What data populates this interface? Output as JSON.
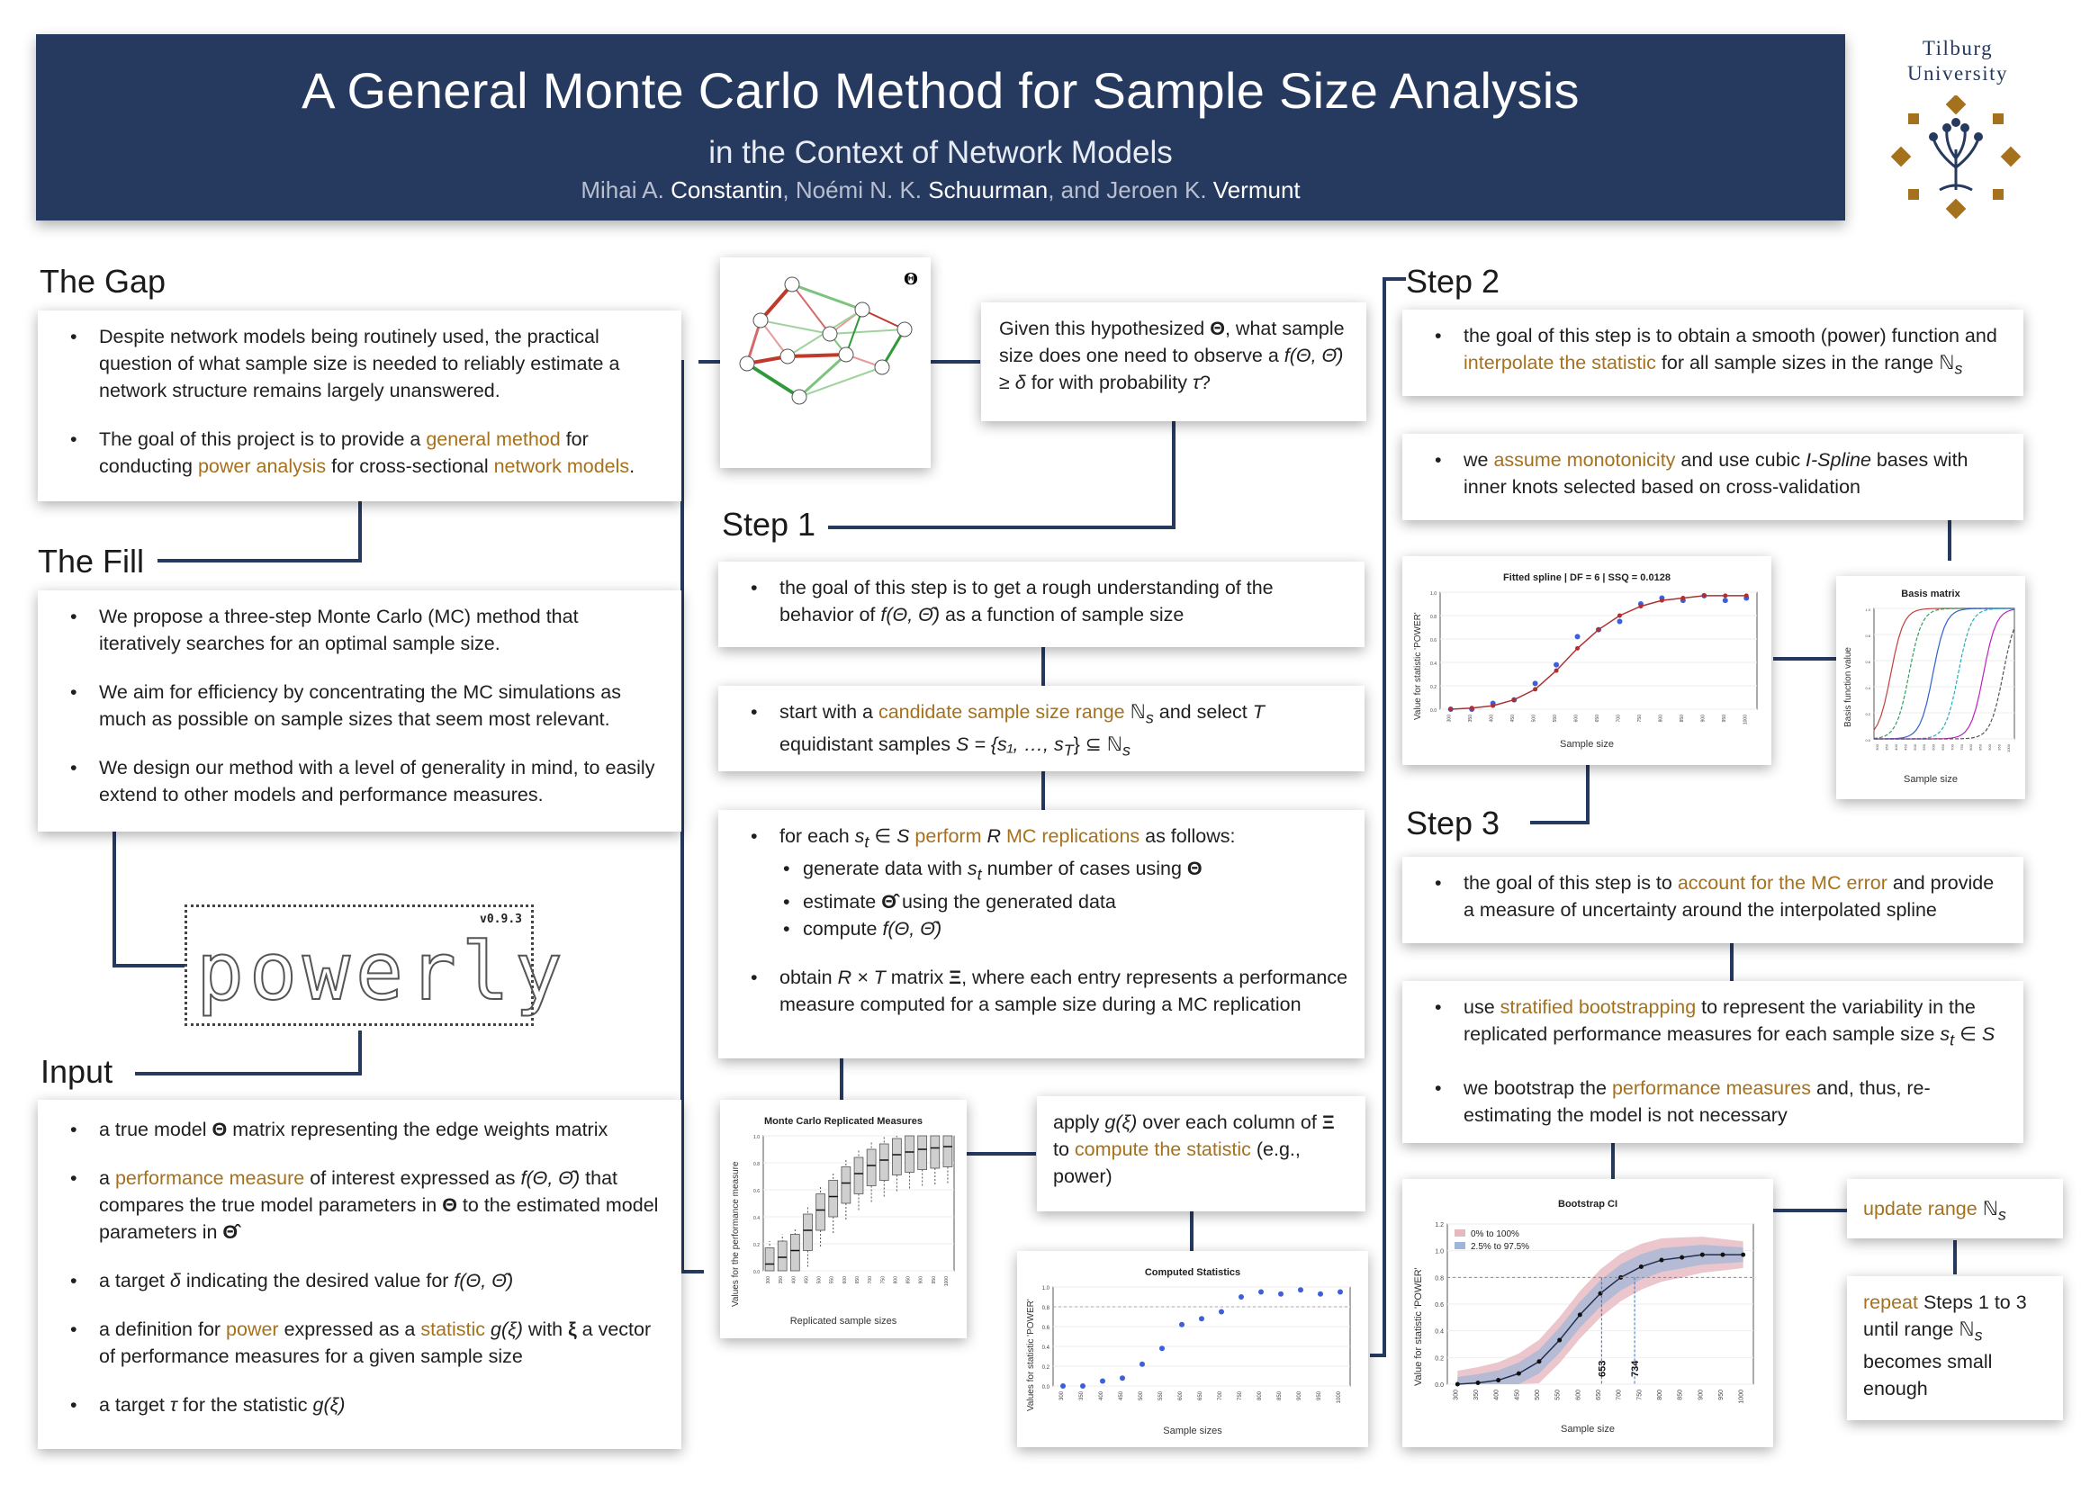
{
  "header": {
    "title": "A General Monte Carlo Method for Sample Size Analysis",
    "subtitle": "in the Context of Network Models",
    "authors": [
      {
        "first": "Mihai A.",
        "last": "Constantin"
      },
      {
        "first": "Noémi N. K.",
        "last": "Schuurman"
      },
      {
        "first": "and Jeroen K.",
        "last": "Vermunt"
      }
    ]
  },
  "logo": {
    "line1": "Tilburg",
    "line2": "University",
    "color": "#a6711c"
  },
  "colors": {
    "navy": "#26395f",
    "highlight": "#a6711c"
  },
  "gap": {
    "heading": "The Gap",
    "items": [
      "Despite network models being routinely used, the practical question of what sample size is needed to reliably estimate a network structure remains largely unanswered.",
      [
        "The goal of this project is to provide a ",
        "general method",
        " for conducting ",
        "power analysis",
        " for cross-sectional ",
        "network models",
        "."
      ]
    ]
  },
  "fill": {
    "heading": "The Fill",
    "items": [
      "We propose a three-step Monte Carlo (MC) method that iteratively searches for an optimal sample size.",
      "We aim for efficiency by concentrating the MC simulations as much as possible on sample sizes that seem most relevant.",
      "We design our method with a level of generality in mind, to easily extend to other models and performance measures."
    ]
  },
  "powerly": {
    "word": "powerly",
    "version": "v0.9.3"
  },
  "input": {
    "heading": "Input",
    "items": [
      [
        "a true model ",
        "Θ",
        " matrix representing the edge weights matrix"
      ],
      [
        "a ",
        "performance measure",
        " of interest expressed as ",
        "f(Θ, Θ̂)",
        " that compares the true model parameters in ",
        "Θ",
        " to the estimated model parameters in ",
        "Θ̂"
      ],
      [
        "a target ",
        "δ",
        " indicating the desired value for ",
        "f(Θ, Θ̂)"
      ],
      [
        "a definition for ",
        "power",
        " expressed as a ",
        "statistic",
        " ",
        "g(ξ)",
        " with ",
        "ξ",
        " a vector of performance measures for a given sample size"
      ],
      [
        "a target ",
        "τ",
        " for the statistic ",
        "g(ξ)"
      ]
    ]
  },
  "network": {
    "label": "Θ",
    "nodes": [
      "1",
      "2",
      "3",
      "4",
      "5",
      "6",
      "7",
      "8",
      "9",
      "10"
    ]
  },
  "question": {
    "text": [
      "Given this hypothesized ",
      "Θ",
      ", what sample size does one need to observe a ",
      "f(Θ, Θ̂) ≥ δ",
      " for with probability ",
      "τ",
      "?"
    ]
  },
  "step1": {
    "heading": "Step 1",
    "c1": [
      "the goal of this step is to get a rough understanding of the behavior of ",
      "f(Θ, Θ̂)",
      " as a function of sample size"
    ],
    "c2": [
      "start with a ",
      "candidate sample size range",
      " ",
      "ℕ",
      "s",
      " and select ",
      "T",
      " equidistant samples ",
      "S = {s₁, …, s",
      "T",
      "} ⊆ ℕ",
      "s"
    ],
    "c3_lead": [
      "for each ",
      "s",
      "t",
      " ∈ ",
      "S",
      " ",
      "perform ",
      "R",
      " MC replications",
      " as follows:"
    ],
    "c3_sub": [
      [
        "generate data with ",
        "s",
        "t",
        " number of cases using ",
        "Θ"
      ],
      [
        "estimate ",
        "Θ̂",
        " using the generated data"
      ],
      [
        "compute ",
        "f(Θ, Θ̂)"
      ]
    ],
    "c3_tail": [
      "obtain ",
      "R × T",
      " matrix ",
      "Ξ",
      ", where each entry represents a performance measure computed for a sample size during a MC replication"
    ],
    "apply": [
      "apply ",
      "g(ξ)",
      " over each column of ",
      "Ξ",
      " to ",
      "compute the statistic",
      " (e.g., power)"
    ]
  },
  "fig_mc": {
    "title": "Monte Carlo Replicated Measures",
    "xlabel": "Replicated sample sizes",
    "ylabel": "Values for the performance measure",
    "xticks": [
      "300",
      "350",
      "400",
      "450",
      "500",
      "550",
      "600",
      "650",
      "700",
      "750",
      "800",
      "850",
      "900",
      "950",
      "1000"
    ],
    "yticks": [
      "0.0",
      "0.2",
      "0.4",
      "0.6",
      "0.8",
      "1.0"
    ]
  },
  "fig_cs": {
    "title": "Computed Statistics",
    "xlabel": "Sample sizes",
    "ylabel": "Values for statistic 'POWER'",
    "xticks": [
      "300",
      "350",
      "400",
      "450",
      "500",
      "550",
      "600",
      "650",
      "700",
      "750",
      "800",
      "850",
      "900",
      "950",
      "1000"
    ],
    "yticks": [
      "0.0",
      "0.2",
      "0.4",
      "0.6",
      "0.8",
      "1.0"
    ]
  },
  "step2": {
    "heading": "Step 2",
    "c1": [
      "the goal of this step is to obtain a smooth (power) function and ",
      "interpolate the statistic",
      " for all sample sizes in the range ",
      "ℕ",
      "s"
    ],
    "c2": [
      "we ",
      "assume monotonicity",
      " and use cubic ",
      "I-Spline",
      " bases with inner knots selected based on cross-validation"
    ]
  },
  "fig_spline": {
    "title": "Fitted spline | DF = 6 | SSQ = 0.0128",
    "xlabel": "Sample size",
    "ylabel": "Value for statistic 'POWER'",
    "xticks": [
      "300",
      "350",
      "400",
      "450",
      "500",
      "550",
      "600",
      "650",
      "700",
      "750",
      "800",
      "850",
      "900",
      "950",
      "1000"
    ],
    "yticks": [
      "0.0",
      "0.2",
      "0.4",
      "0.6",
      "0.8",
      "1.0"
    ]
  },
  "fig_basis": {
    "title": "Basis matrix",
    "xlabel": "Sample size",
    "ylabel": "Basis function value",
    "xticks": [
      "300",
      "350",
      "400",
      "450",
      "500",
      "550",
      "600",
      "650",
      "700",
      "750",
      "800",
      "850",
      "900",
      "950",
      "1000"
    ],
    "yticks": [
      "0.0",
      "0.2",
      "0.4",
      "0.6",
      "0.8",
      "1.0"
    ]
  },
  "step3": {
    "heading": "Step 3",
    "c1": [
      "the goal of this step is to ",
      "account for the MC error",
      " and provide a measure of uncertainty around the interpolated spline"
    ],
    "c2a": [
      "use ",
      "stratified bootstrapping",
      " to represent the variability in the replicated performance measures for each sample size ",
      "s",
      "t",
      " ∈ ",
      "S"
    ],
    "c2b": [
      "we bootstrap the ",
      "performance measures",
      " and, thus, re-estimating the model is not necessary"
    ],
    "update": [
      "update range ",
      "ℕ",
      "s"
    ],
    "repeat": [
      "repeat",
      " Steps 1 to 3 until range ",
      "ℕ",
      "s",
      " becomes small enough"
    ]
  },
  "fig_boot": {
    "title": "Bootstrap CI",
    "xlabel": "Sample size",
    "ylabel": "Value for statistic 'POWER'",
    "legend": [
      "0% to 100%",
      "2.5% to 97.5%"
    ],
    "xticks": [
      "300",
      "350",
      "400",
      "450",
      "500",
      "550",
      "600",
      "650",
      "700",
      "750",
      "800",
      "850",
      "900",
      "950",
      "1000"
    ],
    "yticks": [
      "0.0",
      "0.2",
      "0.4",
      "0.6",
      "0.8",
      "1.0",
      "1.2"
    ],
    "marks": [
      "653",
      "734"
    ]
  },
  "chart_data": [
    {
      "type": "scatter",
      "title": "Computed Statistics",
      "xlabel": "Sample sizes",
      "ylabel": "Values for statistic 'POWER'",
      "x": [
        300,
        350,
        400,
        450,
        500,
        550,
        600,
        650,
        700,
        750,
        800,
        850,
        900,
        950,
        1000
      ],
      "y": [
        0.0,
        0.0,
        0.05,
        0.08,
        0.22,
        0.38,
        0.62,
        0.68,
        0.75,
        0.9,
        0.95,
        0.93,
        0.97,
        0.93,
        0.95
      ],
      "ylim": [
        0,
        1
      ],
      "reference_y": 0.8
    },
    {
      "type": "line",
      "title": "Fitted spline | DF = 6 | SSQ = 0.0128",
      "xlabel": "Sample size",
      "ylabel": "Value for statistic 'POWER'",
      "x": [
        300,
        350,
        400,
        450,
        500,
        550,
        600,
        650,
        700,
        750,
        800,
        850,
        900,
        950,
        1000
      ],
      "y": [
        0.0,
        0.01,
        0.03,
        0.08,
        0.17,
        0.33,
        0.52,
        0.68,
        0.8,
        0.88,
        0.93,
        0.95,
        0.97,
        0.97,
        0.97
      ],
      "observed": [
        0.0,
        0.0,
        0.05,
        0.08,
        0.22,
        0.38,
        0.62,
        0.68,
        0.75,
        0.9,
        0.95,
        0.93,
        0.97,
        0.93,
        0.95
      ],
      "ylim": [
        0,
        1
      ]
    },
    {
      "type": "line",
      "title": "Bootstrap CI",
      "xlabel": "Sample size",
      "ylabel": "Value for statistic 'POWER'",
      "x": [
        300,
        350,
        400,
        450,
        500,
        550,
        600,
        650,
        700,
        750,
        800,
        850,
        900,
        950,
        1000
      ],
      "y": [
        0.0,
        0.01,
        0.03,
        0.08,
        0.17,
        0.33,
        0.52,
        0.68,
        0.8,
        0.88,
        0.93,
        0.95,
        0.97,
        0.97,
        0.97
      ],
      "series": [
        {
          "name": "0% to 100%"
        },
        {
          "name": "2.5% to 97.5%"
        }
      ],
      "ylim": [
        0,
        1.2
      ],
      "reference_y": 0.8,
      "marks": [
        653,
        734
      ]
    },
    {
      "type": "bar",
      "title": "Monte Carlo Replicated Measures",
      "xlabel": "Replicated sample sizes",
      "ylabel": "Values for the performance measure",
      "categories": [
        "300",
        "350",
        "400",
        "450",
        "500",
        "550",
        "600",
        "650",
        "700",
        "750",
        "800",
        "850",
        "900",
        "950",
        "1000"
      ],
      "medians": [
        0.05,
        0.1,
        0.15,
        0.3,
        0.45,
        0.55,
        0.65,
        0.72,
        0.78,
        0.82,
        0.86,
        0.88,
        0.9,
        0.91,
        0.92
      ],
      "ylim": [
        0,
        1
      ]
    }
  ]
}
